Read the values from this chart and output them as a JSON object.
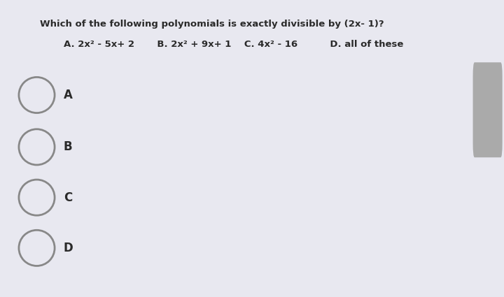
{
  "background_color": "#e8e8f0",
  "content_bg": "#ffffff",
  "question": "Which of the following polynomials is exactly divisible by (2x- 1)?",
  "option_a": "A. 2x² - 5x+ 2",
  "option_b": "B. 2x² + 9x+ 1",
  "option_c": "C. 4x² - 16",
  "option_d": "D. all of these",
  "radio_labels": [
    "A",
    "B",
    "C",
    "D"
  ],
  "radio_color": "#888888",
  "text_color": "#2a2a2a",
  "question_fontsize": 9.5,
  "options_row_fontsize": 9.5,
  "radio_label_fontsize": 12,
  "scrollbar_color": "#aaaaaa"
}
